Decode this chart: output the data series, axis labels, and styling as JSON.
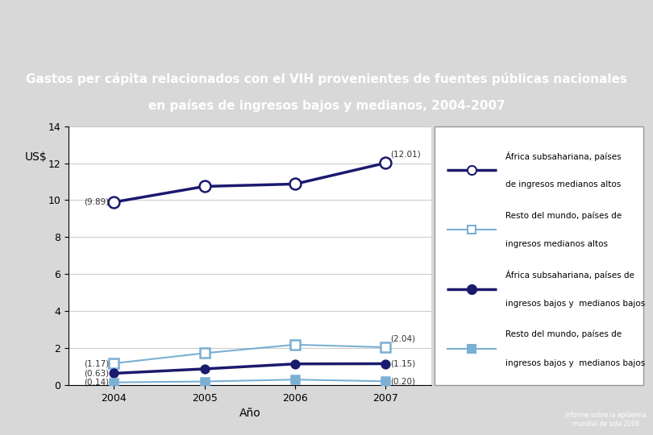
{
  "title_line1": "Gastos per cápita relacionados con el VIH provenientes de fuentes públicas nacionales",
  "title_line2": "en países de ingresos bajos y medianos, 2004-2007",
  "xlabel": "Año",
  "ylabel": "US$",
  "years": [
    2004,
    2005,
    2006,
    2007
  ],
  "series": [
    {
      "label_line1": "África subsahariana, países",
      "label_line2": "de ingresos medianos altos",
      "values": [
        9.89,
        10.74,
        10.87,
        12.01
      ],
      "color": "#1a1a6e",
      "marker": "o",
      "filled": false,
      "linewidth": 2.5,
      "markersize": 10
    },
    {
      "label_line1": "Resto del mundo, países de",
      "label_line2": "ingresos medianos altos",
      "values": [
        1.17,
        1.72,
        2.18,
        2.04
      ],
      "color": "#7bafd4",
      "marker": "s",
      "filled": false,
      "linewidth": 1.5,
      "markersize": 8
    },
    {
      "label_line1": "África subsahariana, países de",
      "label_line2": "ingresos bajos y medianos bajos",
      "values": [
        0.63,
        0.87,
        1.14,
        1.15
      ],
      "color": "#1a1a6e",
      "marker": "o",
      "filled": true,
      "linewidth": 2.5,
      "markersize": 7
    },
    {
      "label_line1": "Resto del mundo, países de",
      "label_line2": "ingresos bajos y medianos bajos",
      "values": [
        0.14,
        0.19,
        0.29,
        0.2
      ],
      "color": "#7bafd4",
      "marker": "s",
      "filled": true,
      "linewidth": 1.5,
      "markersize": 7
    }
  ],
  "ylim": [
    0,
    14
  ],
  "yticks": [
    0,
    2,
    4,
    6,
    8,
    10,
    12,
    14
  ],
  "bg_color": "#d8d8d8",
  "title_bg": "#cc2200",
  "title_fg": "#ffffff",
  "header_bg": "#ffffff",
  "chart_bg": "#ffffff",
  "footer_left_bg": "#cce8f0",
  "footer_mid_bg": "#d8d8d8",
  "footer_right_bg": "#d94f1e",
  "footer_text": "Informe sobre la epidemia\nmundial de sida 2008"
}
